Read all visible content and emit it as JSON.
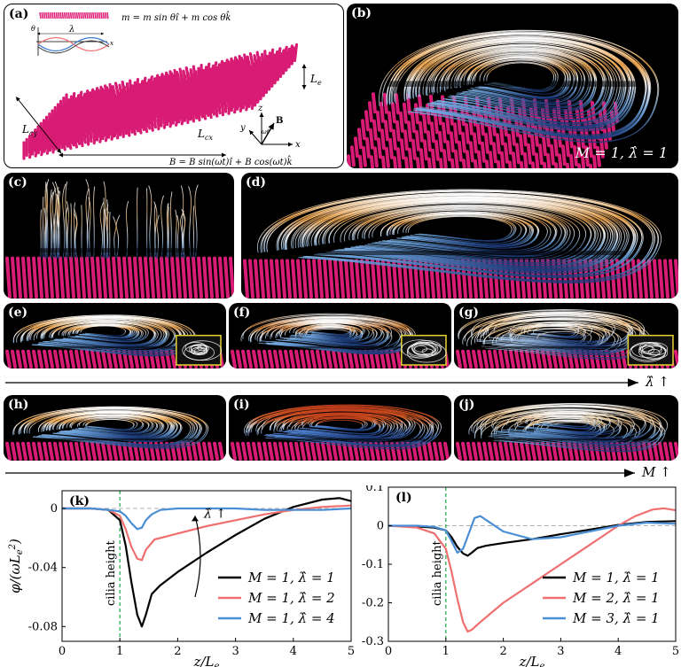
{
  "panel_a": {
    "label": "(a)",
    "m_eq": "m = m sin θî + m cos θk̂",
    "b_eq": "B = B sin(ωt)î + B cos(ωt)k̂",
    "lambda": "λ",
    "Le": "L",
    "Le_sub": "e",
    "Lcx": "L",
    "Lcx_sub": "cx",
    "Lcy": "L",
    "Lcy_sub": "cy",
    "axis_theta": "θ",
    "axis_x_small": "x",
    "axis_z": "z",
    "axis_y": "y",
    "axis_x": "x",
    "axis_B": "B",
    "axis_wt": "ωt"
  },
  "panel_b": {
    "label": "(b)",
    "caption": "M = 1, λ̂ = 1"
  },
  "panel_c": {
    "label": "(c)"
  },
  "panel_d": {
    "label": "(d)"
  },
  "panel_e": {
    "label": "(e)"
  },
  "panel_f": {
    "label": "(f)"
  },
  "panel_g": {
    "label": "(g)"
  },
  "panel_h": {
    "label": "(h)"
  },
  "panel_i": {
    "label": "(i)"
  },
  "panel_j": {
    "label": "(j)"
  },
  "arrow_lambda": "λ̂ ↑",
  "arrow_M": "M ↑",
  "chart_data": [
    {
      "type": "line",
      "label": "(k)",
      "xlabel": "z/L_e",
      "ylabel": "φ/(ωL_e²)",
      "xlim": [
        0,
        5
      ],
      "ylim": [
        -0.09,
        0.012
      ],
      "xticks": [
        0,
        1,
        2,
        3,
        4,
        5
      ],
      "xtick_labels": [
        "0",
        "1",
        "2",
        "3",
        "4",
        "5"
      ],
      "yticks": [
        0,
        -0.04,
        -0.08
      ],
      "ytick_labels": [
        "0",
        "-0.04",
        "-0.08"
      ],
      "annotation": "cilia height",
      "trend_annotation": "λ̂ ↑",
      "legend_position": "lower-right",
      "series": [
        {
          "name": "M = 1, λ̂ = 1",
          "color": "#000000",
          "x": [
            0,
            0.5,
            0.8,
            1.0,
            1.1,
            1.2,
            1.3,
            1.38,
            1.45,
            1.55,
            1.7,
            2.0,
            2.5,
            3.0,
            3.5,
            4.0,
            4.5,
            4.8,
            5.0
          ],
          "y": [
            0,
            0,
            -0.001,
            -0.008,
            -0.025,
            -0.05,
            -0.072,
            -0.08,
            -0.072,
            -0.058,
            -0.052,
            -0.043,
            -0.03,
            -0.018,
            -0.007,
            0.001,
            0.006,
            0.007,
            0.005
          ]
        },
        {
          "name": "M = 1, λ̂ = 2",
          "color": "#f07070",
          "x": [
            0,
            0.5,
            0.8,
            1.0,
            1.1,
            1.2,
            1.3,
            1.38,
            1.45,
            1.6,
            1.8,
            2.0,
            2.5,
            3.0,
            3.5,
            4.0,
            4.5,
            5.0
          ],
          "y": [
            0,
            0,
            -0.001,
            -0.005,
            -0.014,
            -0.026,
            -0.034,
            -0.035,
            -0.028,
            -0.021,
            -0.019,
            -0.017,
            -0.012,
            -0.008,
            -0.004,
            -0.001,
            0.001,
            0.002
          ]
        },
        {
          "name": "M = 1, λ̂ = 4",
          "color": "#4a8fd6",
          "x": [
            0,
            0.5,
            0.8,
            1.0,
            1.1,
            1.2,
            1.3,
            1.38,
            1.45,
            1.55,
            1.7,
            2.0,
            2.5,
            3.0,
            3.5,
            4.0,
            4.5,
            5.0
          ],
          "y": [
            0,
            0,
            -0.001,
            -0.002,
            -0.005,
            -0.01,
            -0.014,
            -0.013,
            -0.008,
            -0.004,
            -0.001,
            0,
            0,
            0,
            -0.001,
            -0.001,
            -0.001,
            0
          ]
        }
      ]
    },
    {
      "type": "line",
      "label": "(l)",
      "xlabel": "z/L_e",
      "ylabel": "",
      "xlim": [
        0,
        5
      ],
      "ylim": [
        -0.3,
        0.1
      ],
      "xticks": [
        0,
        1,
        2,
        3,
        4,
        5
      ],
      "xtick_labels": [
        "0",
        "1",
        "2",
        "3",
        "4",
        "5"
      ],
      "yticks": [
        0.1,
        0,
        -0.1,
        -0.2,
        -0.3
      ],
      "ytick_labels": [
        "0.1",
        "0",
        "-0.1",
        "-0.2",
        "-0.3"
      ],
      "annotation": "cilia height",
      "legend_position": "lower-right",
      "series": [
        {
          "name": "M = 1, λ̂ = 1",
          "color": "#000000",
          "x": [
            0,
            0.5,
            0.8,
            1.0,
            1.1,
            1.2,
            1.3,
            1.38,
            1.45,
            1.55,
            1.7,
            2.0,
            2.5,
            3.0,
            3.5,
            4.0,
            4.5,
            5.0
          ],
          "y": [
            0,
            -0.002,
            -0.005,
            -0.012,
            -0.03,
            -0.055,
            -0.072,
            -0.078,
            -0.07,
            -0.058,
            -0.052,
            -0.045,
            -0.035,
            -0.022,
            -0.01,
            0.002,
            0.01,
            0.012
          ]
        },
        {
          "name": "M = 2, λ̂ = 1",
          "color": "#f07070",
          "x": [
            0,
            0.5,
            0.8,
            1.0,
            1.1,
            1.2,
            1.3,
            1.38,
            1.45,
            1.6,
            1.8,
            2.0,
            2.5,
            3.0,
            3.5,
            4.0,
            4.3,
            4.6,
            4.8,
            5.0
          ],
          "y": [
            0,
            -0.005,
            -0.02,
            -0.06,
            -0.12,
            -0.19,
            -0.25,
            -0.275,
            -0.27,
            -0.25,
            -0.225,
            -0.2,
            -0.15,
            -0.1,
            -0.05,
            0.0,
            0.025,
            0.042,
            0.045,
            0.04
          ]
        },
        {
          "name": "M = 3, λ̂ = 1",
          "color": "#4a8fd6",
          "x": [
            0,
            0.5,
            0.8,
            1.0,
            1.1,
            1.2,
            1.3,
            1.4,
            1.5,
            1.6,
            1.8,
            2.0,
            2.5,
            3.0,
            3.5,
            4.0,
            4.5,
            5.0
          ],
          "y": [
            0,
            0,
            -0.003,
            -0.012,
            -0.04,
            -0.07,
            -0.06,
            -0.02,
            0.02,
            0.025,
            0.005,
            -0.015,
            -0.035,
            -0.03,
            -0.015,
            0.0,
            0.008,
            0.005
          ]
        }
      ]
    }
  ]
}
